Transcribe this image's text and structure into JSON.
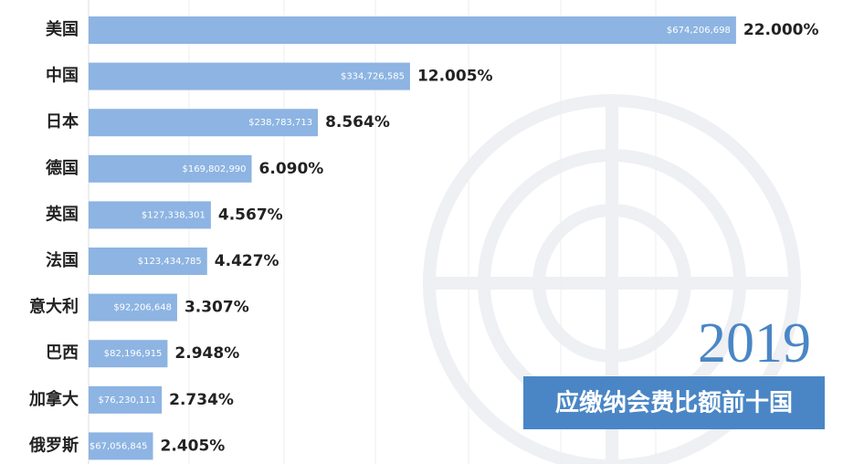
{
  "chart_data": {
    "type": "bar",
    "orientation": "horizontal",
    "title": "2019",
    "subtitle": "应缴纳会费比额前十国",
    "categories": [
      "美国",
      "中国",
      "日本",
      "德国",
      "英国",
      "法国",
      "意大利",
      "巴西",
      "加拿大",
      "俄罗斯"
    ],
    "values": [
      674206698,
      334726585,
      238783713,
      169802990,
      127338301,
      123434785,
      92206648,
      82196915,
      76230111,
      67056845
    ],
    "value_labels": [
      "$674,206,698",
      "$334,726,585",
      "$238,783,713",
      "$169,802,990",
      "$127,338,301",
      "$123,434,785",
      "$92,206,648",
      "$82,196,915",
      "$76,230,111",
      "$67,056,845"
    ],
    "percent_labels": [
      "22.000%",
      "12.005%",
      "8.564%",
      "6.090%",
      "4.567%",
      "4.427%",
      "3.307%",
      "2.948%",
      "2.734%",
      "2.405%"
    ],
    "color": "#8db4e2",
    "highlight_color": "#c0272d",
    "highlight_index": 1,
    "xlim": [
      0,
      700000000
    ]
  }
}
